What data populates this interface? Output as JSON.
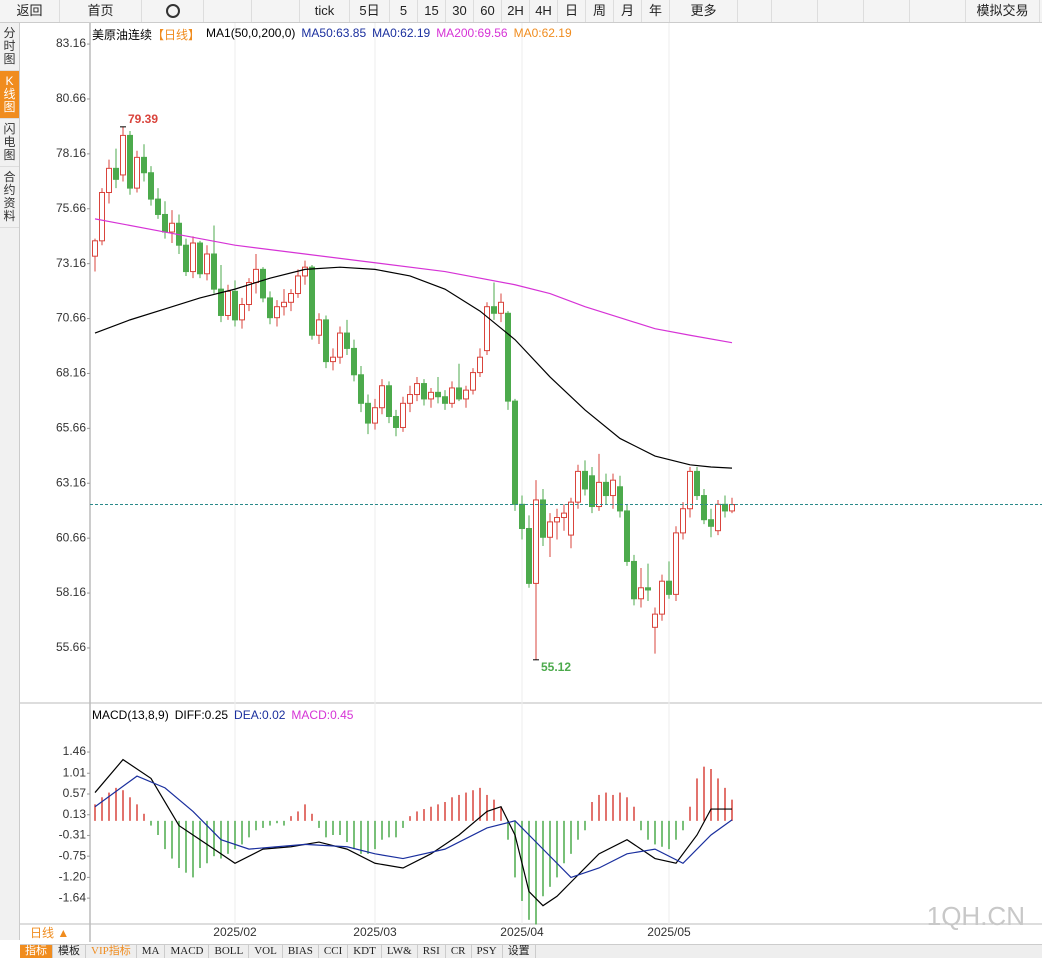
{
  "toolbar": [
    "返回",
    "首页",
    "tick",
    "5日",
    "5",
    "15",
    "30",
    "60",
    "2H",
    "4H",
    "日",
    "周",
    "月",
    "年",
    "更多",
    "模拟交易"
  ],
  "sidebar": [
    "分时图",
    "K线图",
    "闪电图",
    "合约资料"
  ],
  "period": "日线 ▲",
  "bottom_tabs": [
    "指标",
    "模板",
    "VIP指标",
    "MA",
    "MACD",
    "BOLL",
    "VOL",
    "BIAS",
    "CCI",
    "KDT",
    "LW&",
    "RSI",
    "CR",
    "PSY",
    "设置"
  ],
  "watermark": "1QH.CN",
  "chart_data": [
    {
      "type": "candlestick",
      "title": "美原油连续",
      "period_label": "【日线】",
      "legend": [
        {
          "text": "MA1(50,0,200,0)",
          "color": "#000000"
        },
        {
          "text": "MA50:63.85",
          "color": "#1a2f9e"
        },
        {
          "text": "MA0:62.19",
          "color": "#1a2f9e"
        },
        {
          "text": "MA200:69.56",
          "color": "#d633d6"
        },
        {
          "text": "MA0:62.19",
          "color": "#f08c1e"
        }
      ],
      "up_color": "#d9443c",
      "down_color": "#4caa4c",
      "last_color": "#2a8a8a",
      "ylim": [
        53.29,
        83.8
      ],
      "yticks": [
        83.16,
        80.66,
        78.16,
        75.66,
        73.16,
        70.66,
        68.16,
        65.66,
        63.16,
        60.66,
        58.16,
        55.66
      ],
      "categories": [
        null,
        null,
        null,
        null,
        null,
        null,
        null,
        null,
        null,
        null,
        null,
        null,
        null,
        null,
        null,
        null,
        null,
        null,
        null,
        null,
        "2025/02",
        null,
        null,
        null,
        null,
        null,
        null,
        null,
        null,
        null,
        null,
        null,
        null,
        null,
        null,
        null,
        null,
        null,
        null,
        null,
        "2025/03",
        null,
        null,
        null,
        null,
        null,
        null,
        null,
        null,
        null,
        null,
        null,
        null,
        null,
        null,
        null,
        null,
        null,
        null,
        null,
        null,
        "2025/04",
        null,
        null,
        null,
        null,
        null,
        null,
        null,
        null,
        null,
        null,
        null,
        null,
        null,
        null,
        null,
        null,
        null,
        null,
        null,
        null,
        "2025/05",
        null,
        null,
        null,
        null,
        null,
        null,
        null,
        null,
        null
      ],
      "candles": [
        [
          73.5,
          74.3,
          72.8,
          74.2
        ],
        [
          74.2,
          76.6,
          74.0,
          76.4
        ],
        [
          76.4,
          77.9,
          75.9,
          77.5
        ],
        [
          77.5,
          78.4,
          76.6,
          77.0
        ],
        [
          77.2,
          79.39,
          76.9,
          79.0
        ],
        [
          79.0,
          79.2,
          76.3,
          76.6
        ],
        [
          76.6,
          78.3,
          76.4,
          78.0
        ],
        [
          78.0,
          78.6,
          76.9,
          77.3
        ],
        [
          77.3,
          77.6,
          75.8,
          76.1
        ],
        [
          76.1,
          76.6,
          75.2,
          75.4
        ],
        [
          75.4,
          76.0,
          74.3,
          74.6
        ],
        [
          74.6,
          75.6,
          74.1,
          75.0
        ],
        [
          75.0,
          75.4,
          73.6,
          74.0
        ],
        [
          74.0,
          74.3,
          72.6,
          72.8
        ],
        [
          72.8,
          74.4,
          72.5,
          74.1
        ],
        [
          74.1,
          74.2,
          72.5,
          72.7
        ],
        [
          72.7,
          74.0,
          72.4,
          73.6
        ],
        [
          73.6,
          74.9,
          71.8,
          72.0
        ],
        [
          72.0,
          73.1,
          70.5,
          70.8
        ],
        [
          70.8,
          72.2,
          70.6,
          71.9
        ],
        [
          71.9,
          72.4,
          70.3,
          70.6
        ],
        [
          70.6,
          71.6,
          70.2,
          71.3
        ],
        [
          71.3,
          72.5,
          71.0,
          72.3
        ],
        [
          72.3,
          73.6,
          71.8,
          72.9
        ],
        [
          72.9,
          73.0,
          71.4,
          71.6
        ],
        [
          71.6,
          71.9,
          70.4,
          70.7
        ],
        [
          70.7,
          71.5,
          70.3,
          71.2
        ],
        [
          71.2,
          72.0,
          70.8,
          71.4
        ],
        [
          71.4,
          72.0,
          71.0,
          71.8
        ],
        [
          71.8,
          72.9,
          71.6,
          72.6
        ],
        [
          72.6,
          73.3,
          72.2,
          73.0
        ],
        [
          73.0,
          73.1,
          69.7,
          69.9
        ],
        [
          69.9,
          70.9,
          69.5,
          70.6
        ],
        [
          70.6,
          70.8,
          68.4,
          68.7
        ],
        [
          68.7,
          69.3,
          68.3,
          68.9
        ],
        [
          68.9,
          70.3,
          68.6,
          70.0
        ],
        [
          70.0,
          70.6,
          69.0,
          69.3
        ],
        [
          69.3,
          69.7,
          67.8,
          68.1
        ],
        [
          68.1,
          68.5,
          66.4,
          66.8
        ],
        [
          66.8,
          67.2,
          65.4,
          65.9
        ],
        [
          65.9,
          67.0,
          65.6,
          66.6
        ],
        [
          66.6,
          67.9,
          66.3,
          67.6
        ],
        [
          67.6,
          67.8,
          65.9,
          66.2
        ],
        [
          66.2,
          66.5,
          65.3,
          65.7
        ],
        [
          65.7,
          67.1,
          65.5,
          66.8
        ],
        [
          66.8,
          67.6,
          66.4,
          67.2
        ],
        [
          67.2,
          68.0,
          66.9,
          67.7
        ],
        [
          67.7,
          67.9,
          66.7,
          67.0
        ],
        [
          67.0,
          67.5,
          66.6,
          67.3
        ],
        [
          67.3,
          68.0,
          66.8,
          67.1
        ],
        [
          67.1,
          67.4,
          66.5,
          66.8
        ],
        [
          66.8,
          67.8,
          66.6,
          67.5
        ],
        [
          67.5,
          68.6,
          66.9,
          67.0
        ],
        [
          67.0,
          67.6,
          66.6,
          67.4
        ],
        [
          67.4,
          68.4,
          67.2,
          68.2
        ],
        [
          68.2,
          69.3,
          68.0,
          68.9
        ],
        [
          69.2,
          71.4,
          69.0,
          71.2
        ],
        [
          71.2,
          72.3,
          70.6,
          70.9
        ],
        [
          70.9,
          71.8,
          70.5,
          71.4
        ],
        [
          70.9,
          71.0,
          66.5,
          66.9
        ],
        [
          66.9,
          67.0,
          61.9,
          62.2
        ],
        [
          62.2,
          62.6,
          60.6,
          61.1
        ],
        [
          61.1,
          61.7,
          58.4,
          58.6
        ],
        [
          58.6,
          63.3,
          55.12,
          62.4
        ],
        [
          62.4,
          62.9,
          60.3,
          60.7
        ],
        [
          60.7,
          61.8,
          59.8,
          61.4
        ],
        [
          61.4,
          62.0,
          60.6,
          61.6
        ],
        [
          61.6,
          62.2,
          61.0,
          61.8
        ],
        [
          60.8,
          62.5,
          60.2,
          62.3
        ],
        [
          62.3,
          64.0,
          62.0,
          63.7
        ],
        [
          63.7,
          64.2,
          62.6,
          62.9
        ],
        [
          63.5,
          63.9,
          61.8,
          62.1
        ],
        [
          62.1,
          64.5,
          61.9,
          63.2
        ],
        [
          63.2,
          63.6,
          62.2,
          62.6
        ],
        [
          62.6,
          63.6,
          62.0,
          63.3
        ],
        [
          63.0,
          63.5,
          61.6,
          61.9
        ],
        [
          61.9,
          62.2,
          59.4,
          59.6
        ],
        [
          59.6,
          59.9,
          57.6,
          57.9
        ],
        [
          57.9,
          59.3,
          57.5,
          58.4
        ],
        [
          58.4,
          59.5,
          57.8,
          58.3
        ],
        [
          56.6,
          57.5,
          55.4,
          57.2
        ],
        [
          57.2,
          59.0,
          56.9,
          58.7
        ],
        [
          58.7,
          59.6,
          57.9,
          58.1
        ],
        [
          58.1,
          61.2,
          57.8,
          60.9
        ],
        [
          60.9,
          62.3,
          60.6,
          62.0
        ],
        [
          62.0,
          63.9,
          61.6,
          63.7
        ],
        [
          63.7,
          63.9,
          62.4,
          62.6
        ],
        [
          62.6,
          62.9,
          61.3,
          61.5
        ],
        [
          61.5,
          62.0,
          60.7,
          61.2
        ],
        [
          61.0,
          62.4,
          60.8,
          62.2
        ],
        [
          62.2,
          62.6,
          61.6,
          61.9
        ],
        [
          61.9,
          62.5,
          61.8,
          62.19
        ]
      ],
      "overlays": [
        {
          "color": "#000000",
          "x": [
            0,
            5,
            10,
            15,
            20,
            25,
            30,
            35,
            40,
            45,
            50,
            55,
            60,
            65,
            70,
            75,
            80,
            85,
            88,
            91
          ],
          "values": [
            70.0,
            70.6,
            71.1,
            71.6,
            72.0,
            72.5,
            72.9,
            73.0,
            72.9,
            72.6,
            72.0,
            71.0,
            69.7,
            68.0,
            66.5,
            65.2,
            64.4,
            64.0,
            63.9,
            63.85
          ]
        },
        {
          "color": "#d633d6",
          "x": [
            0,
            10,
            20,
            30,
            40,
            50,
            60,
            65,
            70,
            75,
            80,
            85,
            91
          ],
          "values": [
            75.2,
            74.6,
            74.0,
            73.6,
            73.2,
            72.8,
            72.2,
            71.8,
            71.2,
            70.7,
            70.2,
            69.9,
            69.56
          ]
        }
      ],
      "annotations": [
        {
          "index": 4,
          "value": 79.39,
          "color": "#d9443c"
        },
        {
          "index": 63,
          "value": 55.12,
          "color": "#4caa4c"
        }
      ]
    },
    {
      "type": "macd",
      "title": "MACD(13,8,9)",
      "legend": [
        {
          "text": "DIFF:0.25",
          "color": "#000000"
        },
        {
          "text": "DEA:0.02",
          "color": "#1a2f9e"
        },
        {
          "text": "MACD:0.45",
          "color": "#d633d6"
        }
      ],
      "ylim": [
        -2.21,
        2.14
      ],
      "yticks": [
        1.46,
        1.01,
        0.57,
        0.13,
        -0.31,
        -0.75,
        {
          "value": -1.2,
          "label": "-1.20"
        },
        -1.64
      ],
      "histogram": [
        0.35,
        0.5,
        0.6,
        0.7,
        0.65,
        0.5,
        0.35,
        0.15,
        -0.1,
        -0.3,
        -0.6,
        -0.8,
        -1.0,
        -1.1,
        -1.2,
        -1.0,
        -0.9,
        -0.75,
        -0.8,
        -0.7,
        -0.6,
        -0.5,
        -0.35,
        -0.2,
        -0.15,
        -0.1,
        -0.05,
        -0.1,
        0.1,
        0.2,
        0.35,
        0.15,
        -0.15,
        -0.35,
        -0.3,
        -0.3,
        -0.45,
        -0.6,
        -0.7,
        -0.7,
        -0.6,
        -0.4,
        -0.35,
        -0.35,
        -0.15,
        0.1,
        0.2,
        0.25,
        0.3,
        0.35,
        0.4,
        0.5,
        0.55,
        0.6,
        0.65,
        0.7,
        0.55,
        0.45,
        0.3,
        -0.4,
        -1.2,
        -1.7,
        -2.1,
        -2.2,
        -1.6,
        -1.4,
        -1.2,
        -0.9,
        -0.7,
        -0.4,
        -0.2,
        0.4,
        0.55,
        0.6,
        0.55,
        0.6,
        0.5,
        0.3,
        -0.2,
        -0.4,
        -0.5,
        -0.55,
        -0.6,
        -0.4,
        -0.2,
        0.3,
        0.9,
        1.15,
        1.1,
        0.9,
        0.7,
        0.45
      ],
      "up_color": "#d9443c",
      "down_color": "#4caa4c",
      "series": [
        {
          "color": "#000000",
          "x": [
            0,
            4,
            8,
            12,
            16,
            20,
            24,
            28,
            32,
            36,
            40,
            44,
            48,
            52,
            56,
            58,
            60,
            62,
            64,
            66,
            68,
            70,
            72,
            76,
            80,
            83,
            86,
            88,
            91
          ],
          "values": [
            0.6,
            1.3,
            0.9,
            -0.1,
            -0.5,
            -0.9,
            -0.6,
            -0.55,
            -0.45,
            -0.6,
            -0.9,
            -1.0,
            -0.7,
            -0.3,
            0.2,
            0.3,
            -0.3,
            -1.5,
            -1.8,
            -1.6,
            -1.3,
            -1.0,
            -0.7,
            -0.4,
            -0.8,
            -0.9,
            -0.3,
            0.25,
            0.25
          ]
        },
        {
          "color": "#1a2f9e",
          "x": [
            0,
            6,
            10,
            14,
            18,
            22,
            26,
            30,
            36,
            40,
            44,
            50,
            56,
            60,
            64,
            68,
            72,
            76,
            80,
            84,
            88,
            91
          ],
          "values": [
            0.3,
            0.95,
            0.7,
            0.2,
            -0.4,
            -0.6,
            -0.55,
            -0.5,
            -0.55,
            -0.7,
            -0.8,
            -0.6,
            -0.15,
            0.0,
            -0.6,
            -1.2,
            -1.0,
            -0.7,
            -0.6,
            -0.9,
            -0.3,
            0.02
          ]
        }
      ]
    }
  ]
}
